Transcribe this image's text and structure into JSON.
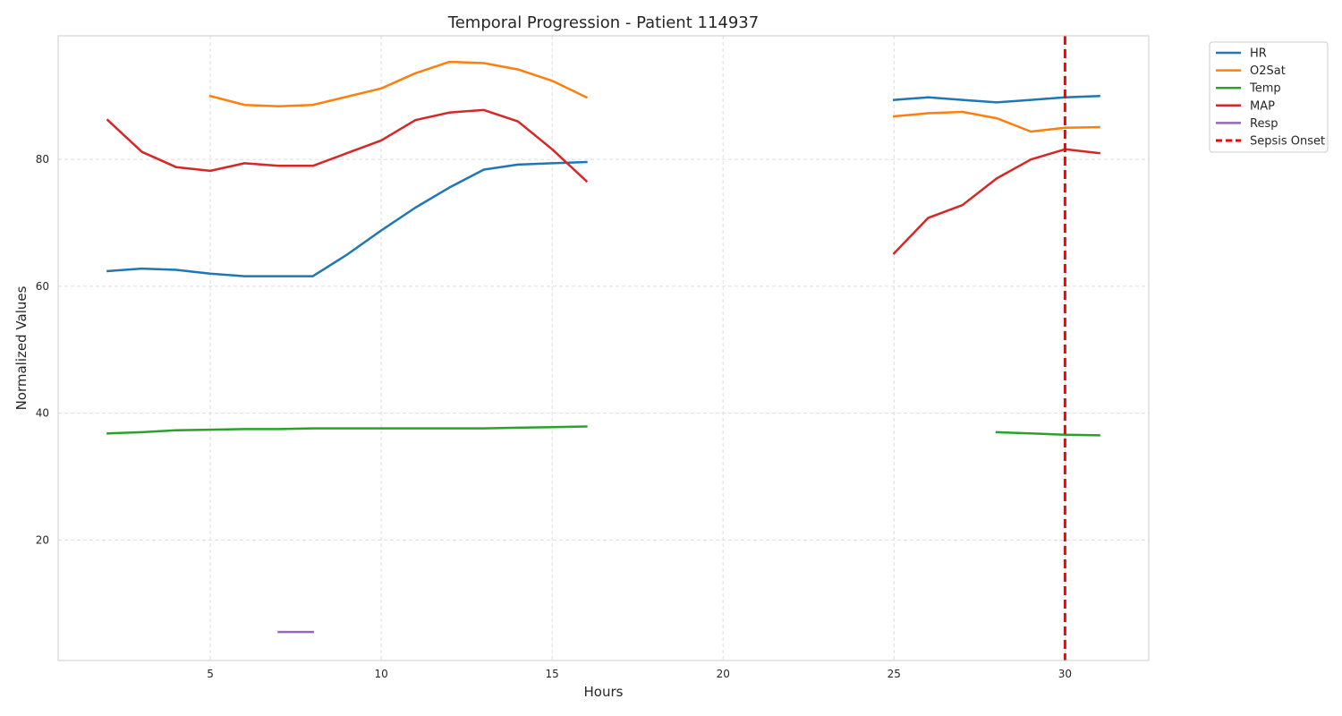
{
  "chart_data": {
    "type": "line",
    "title": "Temporal Progression - Patient 114937",
    "xlabel": "Hours",
    "ylabel": "Normalized Values",
    "xlim": [
      0.55,
      32.45
    ],
    "ylim": [
      1.0,
      99.5
    ],
    "xticks": [
      5,
      10,
      15,
      20,
      25,
      30
    ],
    "yticks": [
      20,
      40,
      60,
      80
    ],
    "grid": true,
    "legend_position": "outside-top-right",
    "series": [
      {
        "name": "HR",
        "color": "#1f77b4",
        "segments": [
          [
            [
              2,
              62.4
            ],
            [
              3,
              62.8
            ],
            [
              4,
              62.6
            ],
            [
              5,
              62.0
            ],
            [
              6,
              61.6
            ],
            [
              7,
              61.6
            ],
            [
              8,
              61.6
            ],
            [
              9,
              65.0
            ],
            [
              10,
              68.8
            ],
            [
              11,
              72.4
            ],
            [
              12,
              75.6
            ],
            [
              13,
              78.4
            ],
            [
              14,
              79.2
            ],
            [
              15,
              79.4
            ],
            [
              16,
              79.6
            ]
          ],
          [
            [
              25,
              89.4
            ],
            [
              26,
              89.8
            ],
            [
              27,
              89.4
            ],
            [
              28,
              89.0
            ],
            [
              29,
              89.4
            ],
            [
              30,
              89.8
            ],
            [
              31,
              90.0
            ]
          ]
        ]
      },
      {
        "name": "O2Sat",
        "color": "#ff7f0e",
        "segments": [
          [
            [
              5,
              90.0
            ],
            [
              6,
              88.6
            ],
            [
              7,
              88.4
            ],
            [
              8,
              88.6
            ],
            [
              9,
              89.9
            ],
            [
              10,
              91.2
            ],
            [
              11,
              93.6
            ],
            [
              12,
              95.4
            ],
            [
              13,
              95.2
            ],
            [
              14,
              94.2
            ],
            [
              15,
              92.4
            ],
            [
              16,
              89.8
            ]
          ],
          [
            [
              25,
              86.8
            ],
            [
              26,
              87.3
            ],
            [
              27,
              87.5
            ],
            [
              28,
              86.5
            ],
            [
              29,
              84.4
            ],
            [
              30,
              85.0
            ],
            [
              31,
              85.1
            ]
          ]
        ]
      },
      {
        "name": "Temp",
        "color": "#2ca02c",
        "segments": [
          [
            [
              2,
              36.8
            ],
            [
              3,
              37.0
            ],
            [
              4,
              37.3
            ],
            [
              5,
              37.4
            ],
            [
              6,
              37.5
            ],
            [
              7,
              37.5
            ],
            [
              8,
              37.6
            ],
            [
              9,
              37.6
            ],
            [
              10,
              37.6
            ],
            [
              11,
              37.6
            ],
            [
              12,
              37.6
            ],
            [
              13,
              37.6
            ],
            [
              14,
              37.7
            ],
            [
              15,
              37.8
            ],
            [
              16,
              37.9
            ]
          ],
          [
            [
              28,
              37.0
            ],
            [
              29,
              36.8
            ],
            [
              30,
              36.6
            ],
            [
              31,
              36.5
            ]
          ]
        ]
      },
      {
        "name": "MAP",
        "color": "#d62728",
        "segments": [
          [
            [
              2,
              86.2
            ],
            [
              3,
              81.2
            ],
            [
              4,
              78.8
            ],
            [
              5,
              78.2
            ],
            [
              6,
              79.4
            ],
            [
              7,
              79.0
            ],
            [
              8,
              79.0
            ],
            [
              9,
              81.0
            ],
            [
              10,
              83.0
            ],
            [
              11,
              86.2
            ],
            [
              12,
              87.4
            ],
            [
              13,
              87.8
            ],
            [
              14,
              86.0
            ],
            [
              15,
              81.6
            ],
            [
              16,
              76.6
            ]
          ],
          [
            [
              25,
              65.2
            ],
            [
              26,
              70.8
            ],
            [
              27,
              72.8
            ],
            [
              28,
              77.0
            ],
            [
              29,
              80.0
            ],
            [
              30,
              81.6
            ],
            [
              31,
              81.0
            ]
          ]
        ]
      },
      {
        "name": "Resp",
        "color": "#9467bd",
        "segments": [
          [
            [
              7,
              5.5
            ],
            [
              8,
              5.5
            ]
          ]
        ]
      }
    ],
    "vlines": [
      {
        "name": "Sepsis Onset",
        "x": 30,
        "color": "#ff0000",
        "style": "dashed"
      }
    ]
  }
}
